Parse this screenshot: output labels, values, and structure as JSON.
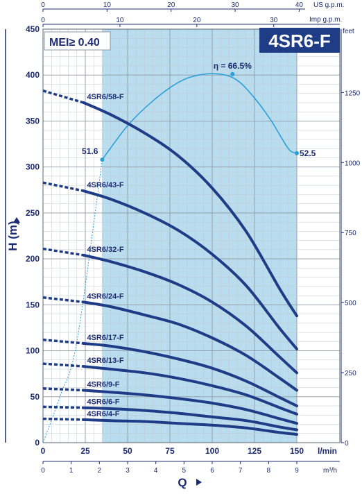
{
  "chart_data": {
    "type": "line",
    "title": "4SR6-F",
    "mei_label": "MEI≥ 0.40",
    "ylabel": "H  (m)",
    "xlabel": "Q",
    "x_unit": "l/min",
    "x_unit_m3h": "m³/h",
    "top_unit_us": "US g.p.m.",
    "top_unit_imp": "Imp g.p.m.",
    "right_unit": "feet",
    "xlim": [
      0,
      150
    ],
    "ylim": [
      0,
      450
    ],
    "x_ticks": [
      "0",
      "25",
      "50",
      "75",
      "100",
      "125",
      "150"
    ],
    "y_ticks": [
      "0",
      "50",
      "100",
      "150",
      "200",
      "250",
      "300",
      "350",
      "400",
      "450"
    ],
    "m3h_ticks": [
      "0",
      "1",
      "2",
      "3",
      "4",
      "5",
      "6",
      "7",
      "8",
      "9"
    ],
    "us_gpm_ticks": [
      "0",
      "10",
      "20",
      "30",
      "40"
    ],
    "imp_gpm_ticks": [
      "0",
      "10",
      "20",
      "30"
    ],
    "feet_ticks": [
      "0",
      "250",
      "500",
      "750",
      "1000",
      "1250"
    ],
    "grid": true,
    "operating_range": [
      35,
      150
    ],
    "series": [
      {
        "name": "4SR6/58-F",
        "label_at": [
          26,
          370
        ],
        "shutoff": [
          [
            0,
            383
          ],
          [
            24,
            370
          ]
        ],
        "x": [
          24,
          40,
          60,
          80,
          100,
          120,
          140,
          150
        ],
        "y": [
          370,
          357,
          337,
          312,
          277,
          230,
          167,
          138
        ]
      },
      {
        "name": "4SR6/43-F",
        "label_at": [
          26,
          274
        ],
        "shutoff": [
          [
            0,
            283
          ],
          [
            24,
            274
          ]
        ],
        "x": [
          24,
          40,
          60,
          80,
          100,
          120,
          140,
          150
        ],
        "y": [
          274,
          265,
          250,
          231,
          205,
          171,
          124,
          102
        ]
      },
      {
        "name": "4SR6/32-F",
        "label_at": [
          26,
          204
        ],
        "shutoff": [
          [
            0,
            211
          ],
          [
            24,
            204
          ]
        ],
        "x": [
          24,
          40,
          60,
          80,
          100,
          120,
          140,
          150
        ],
        "y": [
          204,
          197,
          186,
          172,
          153,
          127,
          93,
          76
        ]
      },
      {
        "name": "4SR6/24-F",
        "label_at": [
          26,
          153
        ],
        "shutoff": [
          [
            0,
            158
          ],
          [
            24,
            153
          ]
        ],
        "x": [
          24,
          40,
          60,
          80,
          100,
          120,
          140,
          150
        ],
        "y": [
          153,
          148,
          139,
          129,
          114,
          95,
          70,
          57
        ]
      },
      {
        "name": "4SR6/17-F",
        "label_at": [
          26,
          108
        ],
        "shutoff": [
          [
            0,
            112
          ],
          [
            24,
            108
          ]
        ],
        "x": [
          24,
          40,
          60,
          80,
          100,
          120,
          140,
          150
        ],
        "y": [
          108,
          105,
          99,
          91,
          81,
          67,
          49,
          40
        ]
      },
      {
        "name": "4SR6/13-F",
        "label_at": [
          26,
          83
        ],
        "shutoff": [
          [
            0,
            86
          ],
          [
            24,
            83
          ]
        ],
        "x": [
          24,
          40,
          60,
          80,
          100,
          120,
          140,
          150
        ],
        "y": [
          83,
          80,
          76,
          70,
          62,
          52,
          38,
          31
        ]
      },
      {
        "name": "4SR6/9-F",
        "label_at": [
          26,
          57
        ],
        "shutoff": [
          [
            0,
            59
          ],
          [
            24,
            57
          ]
        ],
        "x": [
          24,
          40,
          60,
          80,
          100,
          120,
          140,
          150
        ],
        "y": [
          57,
          55,
          52,
          48,
          43,
          36,
          26,
          21
        ]
      },
      {
        "name": "4SR6/6-F",
        "label_at": [
          26,
          38
        ],
        "shutoff": [
          [
            0,
            39
          ],
          [
            24,
            38
          ]
        ],
        "x": [
          24,
          40,
          60,
          80,
          100,
          120,
          140,
          150
        ],
        "y": [
          38,
          37,
          35,
          32,
          28,
          24,
          17,
          14
        ]
      },
      {
        "name": "4SR6/4-F",
        "label_at": [
          26,
          25
        ],
        "shutoff": [
          [
            0,
            26
          ],
          [
            24,
            25
          ]
        ],
        "x": [
          24,
          40,
          60,
          80,
          100,
          120,
          140,
          150
        ],
        "y": [
          25,
          24,
          23,
          21,
          19,
          16,
          11,
          9
        ]
      }
    ],
    "efficiency_curve": {
      "x": [
        0,
        10,
        20,
        35,
        50,
        65,
        80,
        92,
        105,
        115,
        125,
        135,
        145,
        150
      ],
      "y": [
        0,
        50,
        110,
        308,
        345,
        372,
        392,
        400,
        401,
        394,
        375,
        350,
        320,
        315
      ],
      "labels": [
        {
          "text": "51.6",
          "x": 35,
          "y": 308
        },
        {
          "text": "η = 66.5%",
          "x": 112,
          "y": 401
        },
        {
          "text": "52.5",
          "x": 150,
          "y": 315
        }
      ]
    }
  }
}
